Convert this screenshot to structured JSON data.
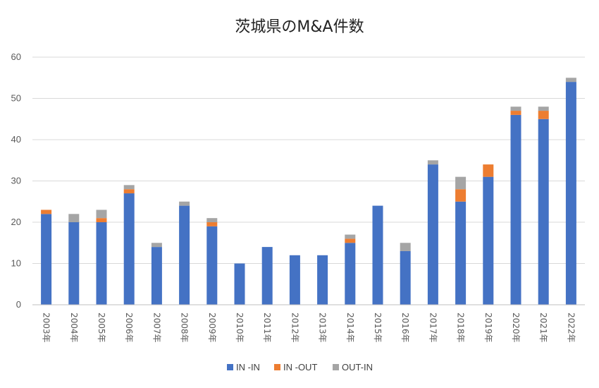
{
  "chart_data": {
    "type": "bar",
    "stacked": true,
    "title": "茨城県のM&A件数",
    "categories": [
      "2003年",
      "2004年",
      "2005年",
      "2006年",
      "2007年",
      "2008年",
      "2009年",
      "2010年",
      "2011年",
      "2012年",
      "2013年",
      "2014年",
      "2015年",
      "2016年",
      "2017年",
      "2018年",
      "2019年",
      "2020年",
      "2021年",
      "2022年"
    ],
    "series": [
      {
        "name": "IN -IN",
        "color": "#4472C4",
        "values": [
          22,
          20,
          20,
          27,
          14,
          24,
          19,
          10,
          14,
          12,
          12,
          15,
          24,
          13,
          34,
          25,
          31,
          46,
          45,
          54
        ]
      },
      {
        "name": "IN -OUT",
        "color": "#ED7D31",
        "values": [
          1,
          0,
          1,
          1,
          0,
          0,
          1,
          0,
          0,
          0,
          0,
          1,
          0,
          0,
          0,
          3,
          3,
          1,
          2,
          0
        ]
      },
      {
        "name": "OUT-IN",
        "color": "#A5A5A5",
        "values": [
          0,
          2,
          2,
          1,
          1,
          1,
          1,
          0,
          0,
          0,
          0,
          1,
          0,
          2,
          1,
          3,
          0,
          1,
          1,
          1
        ]
      }
    ],
    "yticks": [
      "0",
      "10",
      "20",
      "30",
      "40",
      "50",
      "60"
    ],
    "ylim": [
      0,
      60
    ],
    "grid": true,
    "legend_position": "bottom"
  }
}
